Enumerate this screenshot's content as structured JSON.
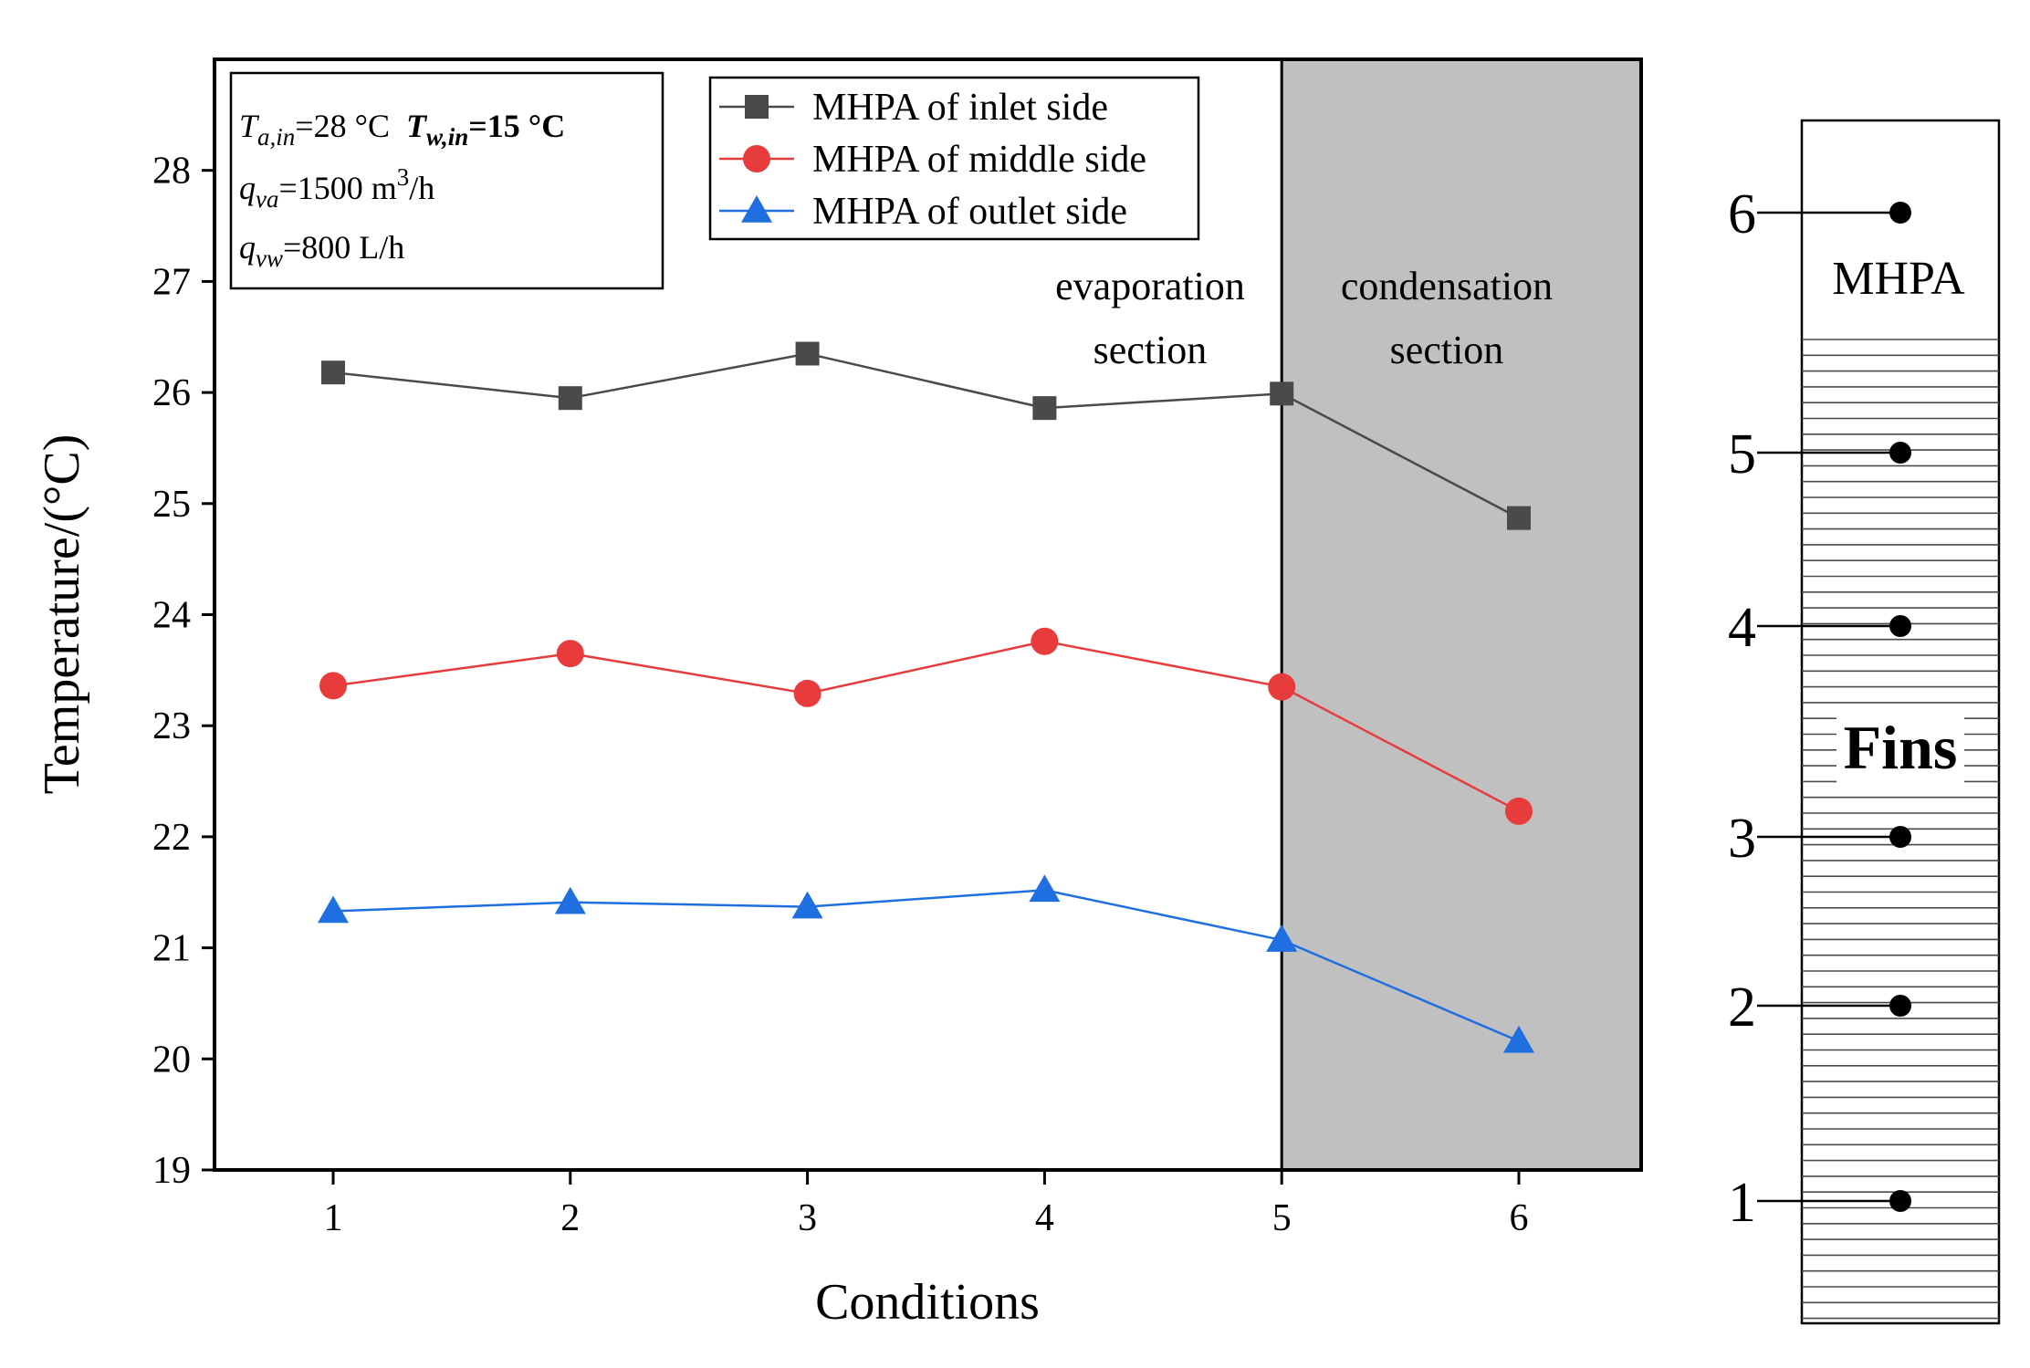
{
  "chart_data": {
    "type": "line",
    "x": [
      1,
      2,
      3,
      4,
      5,
      6
    ],
    "xlabel": "Conditions",
    "ylabel": "Temperature/(°C)",
    "xlim": [
      0.5,
      7
    ],
    "ylim": [
      19,
      29
    ],
    "yticks": [
      19,
      20,
      21,
      22,
      23,
      24,
      25,
      26,
      27,
      28
    ],
    "xticks": [
      1,
      2,
      3,
      4,
      5,
      6
    ],
    "grid": false,
    "legend_position": "top-center",
    "series": [
      {
        "name": "MHPA of inlet side",
        "marker": "square",
        "color": "#4a4a4a",
        "values": [
          26.18,
          25.95,
          26.35,
          25.86,
          25.99,
          24.87
        ]
      },
      {
        "name": "MHPA of middle side",
        "marker": "circle",
        "color": "#e83c3c",
        "values": [
          23.36,
          23.65,
          23.29,
          23.76,
          23.35,
          22.23
        ]
      },
      {
        "name": "MHPA of outlet side",
        "marker": "triangle",
        "color": "#1f6fe0",
        "values": [
          21.33,
          21.41,
          21.37,
          21.52,
          21.07,
          20.16
        ]
      }
    ],
    "shaded_region": {
      "x_from": 5,
      "x_to": 7,
      "color": "#c0c0c0"
    },
    "annotations": {
      "evaporation_line1": "evaporation",
      "evaporation_line2": "section",
      "condensation_line1": "condensation",
      "condensation_line2": "section"
    },
    "info_box": {
      "line1_a_sym": "T",
      "line1_a_sub": "a,in",
      "line1_a_val": "=28 °C",
      "line1_b_sym": "T",
      "line1_b_sub": "w,in",
      "line1_b_val": "=15 °C",
      "line2_sym": "q",
      "line2_sub": "va",
      "line2_val": "=1500 m",
      "line2_sup": "3",
      "line2_tail": "/h",
      "line3_sym": "q",
      "line3_sub": "vw",
      "line3_val": "=800 L/h"
    }
  },
  "diagram": {
    "title": "MHPA",
    "fins_label": "Fins",
    "points": [
      "6",
      "5",
      "4",
      "3",
      "2",
      "1"
    ]
  }
}
